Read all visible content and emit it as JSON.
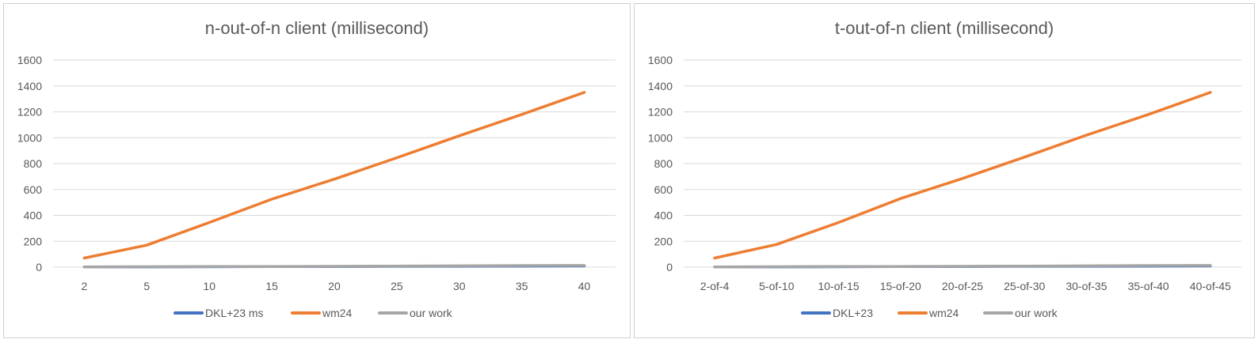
{
  "chart_data": [
    {
      "type": "line",
      "title": "n-out-of-n client (millisecond)",
      "categories": [
        "2",
        "5",
        "10",
        "15",
        "20",
        "25",
        "30",
        "35",
        "40"
      ],
      "ylim": [
        0,
        1600
      ],
      "yticks": [
        0,
        200,
        400,
        600,
        800,
        1000,
        1200,
        1400,
        1600
      ],
      "grid": true,
      "legend_position": "bottom",
      "series": [
        {
          "name": "DKL+23 ms",
          "color": "#4472c4",
          "values": [
            1,
            2,
            3,
            4,
            5,
            6,
            7,
            8,
            9
          ]
        },
        {
          "name": "wm24",
          "color": "#ed7d31",
          "values": [
            70,
            170,
            345,
            525,
            680,
            845,
            1015,
            1180,
            1350
          ]
        },
        {
          "name": "our work",
          "color": "#a5a5a5",
          "values": [
            2,
            3,
            4,
            5,
            6,
            8,
            10,
            12,
            13
          ]
        }
      ]
    },
    {
      "type": "line",
      "title": "t-out-of-n client (millisecond)",
      "categories": [
        "2-of-4",
        "5-of-10",
        "10-of-15",
        "15-of-20",
        "20-of-25",
        "25-of-30",
        "30-of-35",
        "35-of-40",
        "40-of-45"
      ],
      "ylim": [
        0,
        1600
      ],
      "yticks": [
        0,
        200,
        400,
        600,
        800,
        1000,
        1200,
        1400,
        1600
      ],
      "grid": true,
      "legend_position": "bottom",
      "series": [
        {
          "name": "DKL+23",
          "color": "#4472c4",
          "values": [
            1,
            2,
            3,
            4,
            5,
            6,
            7,
            8,
            9
          ]
        },
        {
          "name": "wm24",
          "color": "#ed7d31",
          "values": [
            70,
            175,
            345,
            530,
            685,
            850,
            1020,
            1180,
            1350
          ]
        },
        {
          "name": "our work",
          "color": "#a5a5a5",
          "values": [
            2,
            3,
            4,
            5,
            6,
            8,
            10,
            12,
            13
          ]
        }
      ]
    }
  ]
}
